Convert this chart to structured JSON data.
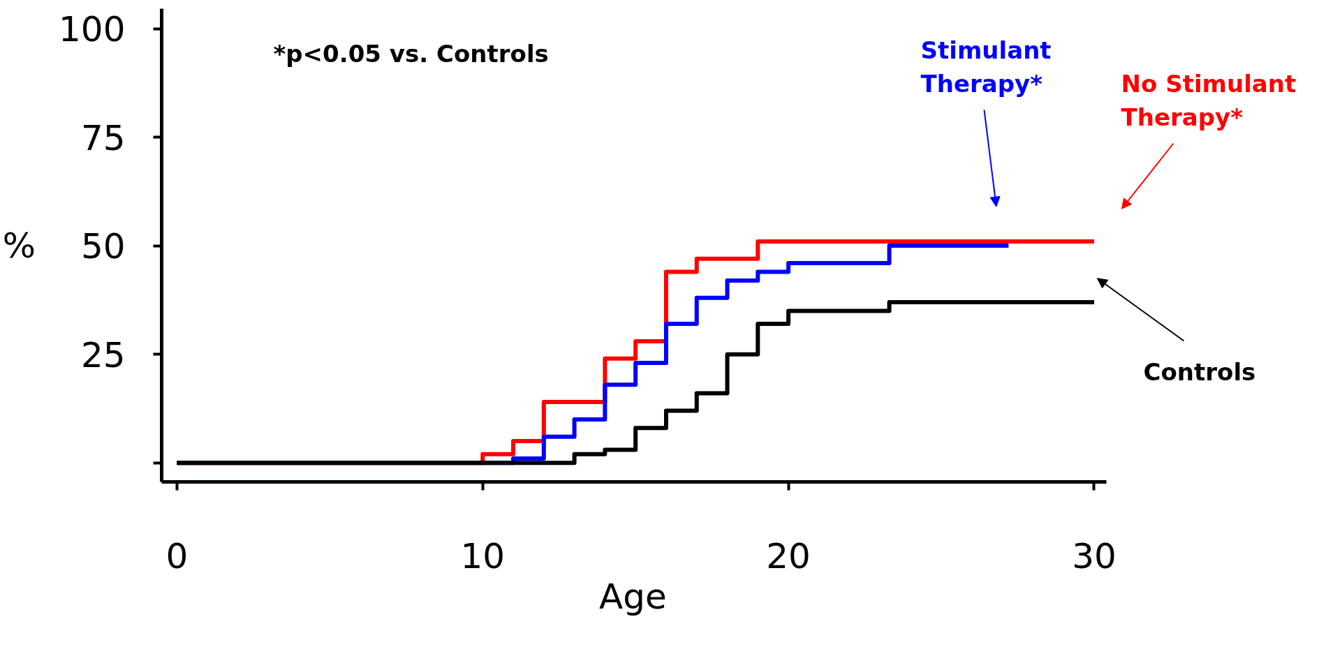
{
  "chart_data": {
    "type": "step",
    "xlabel": "Age",
    "ylabel": "%",
    "annotations": [
      "*p<0.05 vs. Controls"
    ],
    "xlim": [
      -0.5,
      30.4
    ],
    "xticks": [
      0,
      10,
      20,
      30
    ],
    "ylim": [
      -4.4,
      104.6
    ],
    "yticks": [
      {
        "value": 0,
        "label": null
      },
      25,
      50,
      75,
      100
    ],
    "grid": false,
    "line_style": "solid",
    "series": [
      {
        "name": "No Stimulant Therapy*",
        "color": "#ff0000",
        "x": [
          0,
          10,
          11,
          12,
          14,
          15,
          16,
          17,
          19,
          30
        ],
        "values": [
          0,
          2,
          5,
          14,
          24,
          28,
          44,
          47,
          51,
          51
        ]
      },
      {
        "name": "Stimulant Therapy*",
        "color": "#0000ff",
        "x": [
          0,
          11,
          12,
          13,
          14,
          15,
          16,
          17,
          18,
          19,
          20,
          23.3,
          27.2
        ],
        "values": [
          0,
          1,
          6,
          10,
          18,
          23,
          32,
          38,
          42,
          44,
          46,
          50,
          50
        ]
      },
      {
        "name": "Controls",
        "color": "#000000",
        "x": [
          0,
          13,
          14,
          15,
          16,
          17,
          18,
          19,
          20,
          23.3,
          30
        ],
        "values": [
          0,
          2,
          3,
          8,
          12,
          16,
          25,
          32,
          35,
          37,
          37
        ]
      }
    ]
  }
}
